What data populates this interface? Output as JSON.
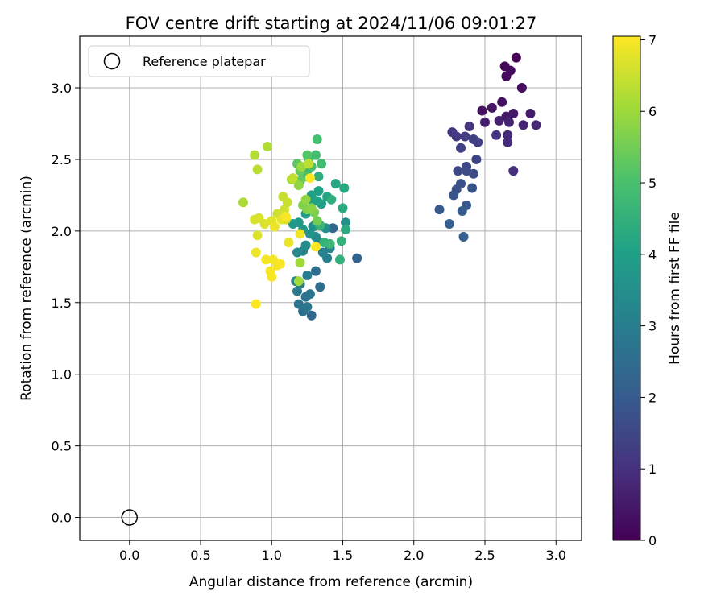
{
  "chart_data": {
    "type": "scatter",
    "title": "FOV centre drift starting at 2024/11/06 09:01:27",
    "xlabel": "Angular distance from reference (arcmin)",
    "ylabel": "Rotation from reference (arcmin)",
    "colorbar_label": "Hours from first FF file",
    "xlim": [
      -0.35,
      3.18
    ],
    "ylim": [
      -0.16,
      3.36
    ],
    "xticks": [
      "0.0",
      "0.5",
      "1.0",
      "1.5",
      "2.0",
      "2.5",
      "3.0"
    ],
    "yticks": [
      "0.0",
      "0.5",
      "1.0",
      "1.5",
      "2.0",
      "2.5",
      "3.0"
    ],
    "colorbar_ticks": [
      "0",
      "1",
      "2",
      "3",
      "4",
      "5",
      "6",
      "7"
    ],
    "colorbar_range": [
      0,
      7.05
    ],
    "colormap": "viridis",
    "grid": true,
    "legend_position": "upper-left",
    "legend_entries": [
      "Reference platepar"
    ],
    "reference_point": {
      "x": 0.0,
      "y": 0.0
    },
    "points": [
      [
        2.72,
        3.21,
        0.05
      ],
      [
        2.64,
        3.15,
        0.1
      ],
      [
        2.68,
        3.12,
        0.15
      ],
      [
        2.65,
        3.08,
        0.2
      ],
      [
        2.76,
        3.0,
        0.25
      ],
      [
        2.62,
        2.9,
        0.3
      ],
      [
        2.48,
        2.84,
        0.35
      ],
      [
        2.55,
        2.86,
        0.4
      ],
      [
        2.65,
        2.8,
        0.45
      ],
      [
        2.7,
        2.82,
        0.5
      ],
      [
        2.82,
        2.82,
        0.55
      ],
      [
        2.5,
        2.76,
        0.6
      ],
      [
        2.6,
        2.77,
        0.65
      ],
      [
        2.67,
        2.76,
        0.7
      ],
      [
        2.77,
        2.74,
        0.75
      ],
      [
        2.86,
        2.74,
        0.8
      ],
      [
        2.66,
        2.67,
        0.85
      ],
      [
        2.66,
        2.62,
        0.9
      ],
      [
        2.7,
        2.42,
        0.95
      ],
      [
        2.58,
        2.67,
        1.05
      ],
      [
        2.39,
        2.73,
        1.1
      ],
      [
        2.27,
        2.69,
        1.15
      ],
      [
        2.3,
        2.66,
        1.2
      ],
      [
        2.36,
        2.66,
        1.25
      ],
      [
        2.45,
        2.62,
        1.3
      ],
      [
        2.42,
        2.64,
        1.35
      ],
      [
        2.33,
        2.58,
        1.4
      ],
      [
        2.44,
        2.5,
        1.45
      ],
      [
        2.37,
        2.45,
        1.5
      ],
      [
        2.31,
        2.42,
        1.55
      ],
      [
        2.37,
        2.42,
        1.6
      ],
      [
        2.42,
        2.4,
        1.65
      ],
      [
        2.33,
        2.33,
        1.7
      ],
      [
        2.3,
        2.29,
        1.75
      ],
      [
        2.41,
        2.3,
        1.8
      ],
      [
        2.28,
        2.25,
        1.85
      ],
      [
        2.37,
        2.18,
        1.9
      ],
      [
        2.18,
        2.15,
        1.95
      ],
      [
        2.34,
        2.14,
        2.0
      ],
      [
        2.25,
        2.05,
        2.05
      ],
      [
        2.35,
        1.96,
        2.1
      ],
      [
        1.6,
        1.81,
        2.2
      ],
      [
        1.43,
        2.02,
        2.3
      ],
      [
        1.28,
        1.41,
        2.4
      ],
      [
        1.34,
        1.61,
        2.5
      ],
      [
        1.31,
        1.72,
        2.55
      ],
      [
        1.22,
        1.44,
        2.6
      ],
      [
        1.24,
        1.54,
        2.65
      ],
      [
        1.19,
        1.49,
        2.7
      ],
      [
        1.27,
        1.56,
        2.75
      ],
      [
        1.25,
        1.47,
        2.8
      ],
      [
        1.18,
        1.58,
        2.85
      ],
      [
        1.2,
        1.63,
        2.9
      ],
      [
        1.25,
        1.69,
        2.95
      ],
      [
        1.17,
        1.65,
        3.0
      ],
      [
        1.39,
        1.81,
        3.05
      ],
      [
        1.36,
        1.85,
        3.1
      ],
      [
        1.41,
        1.88,
        3.15
      ],
      [
        1.33,
        1.92,
        3.2
      ],
      [
        1.22,
        1.86,
        3.25
      ],
      [
        1.18,
        1.85,
        3.3
      ],
      [
        1.31,
        1.96,
        3.35
      ],
      [
        1.24,
        1.9,
        3.4
      ],
      [
        1.29,
        2.03,
        3.45
      ],
      [
        1.38,
        2.02,
        3.5
      ],
      [
        1.52,
        2.06,
        3.55
      ],
      [
        1.31,
        2.05,
        3.6
      ],
      [
        1.27,
        1.98,
        3.65
      ],
      [
        1.22,
        2.01,
        3.7
      ],
      [
        1.15,
        2.05,
        3.75
      ],
      [
        1.19,
        2.06,
        3.8
      ],
      [
        1.24,
        2.12,
        3.85
      ],
      [
        1.35,
        2.19,
        3.9
      ],
      [
        1.27,
        2.22,
        3.95
      ],
      [
        1.28,
        2.25,
        4.0
      ],
      [
        1.33,
        2.28,
        4.05
      ],
      [
        1.32,
        2.21,
        4.1
      ],
      [
        1.39,
        2.24,
        4.15
      ],
      [
        1.45,
        2.33,
        4.2
      ],
      [
        1.51,
        2.3,
        4.25
      ],
      [
        1.5,
        2.16,
        4.3
      ],
      [
        1.52,
        2.01,
        4.35
      ],
      [
        1.42,
        2.22,
        4.4
      ],
      [
        1.33,
        2.38,
        4.45
      ],
      [
        1.48,
        1.8,
        4.5
      ],
      [
        1.49,
        1.93,
        4.55
      ],
      [
        1.37,
        1.92,
        4.6
      ],
      [
        1.34,
        2.04,
        4.65
      ],
      [
        1.41,
        1.91,
        4.7
      ],
      [
        1.25,
        2.42,
        4.75
      ],
      [
        1.26,
        2.5,
        4.8
      ],
      [
        1.35,
        2.47,
        4.85
      ],
      [
        1.31,
        2.53,
        4.9
      ],
      [
        1.32,
        2.64,
        4.95
      ],
      [
        1.28,
        2.45,
        5.0
      ],
      [
        1.24,
        2.38,
        5.05
      ],
      [
        1.25,
        2.53,
        5.15
      ],
      [
        1.18,
        2.47,
        5.25
      ],
      [
        1.2,
        2.35,
        5.35
      ],
      [
        1.2,
        2.42,
        5.4
      ],
      [
        1.32,
        2.07,
        5.5
      ],
      [
        1.3,
        2.13,
        5.6
      ],
      [
        1.22,
        2.18,
        5.65
      ],
      [
        1.25,
        2.15,
        5.7
      ],
      [
        1.28,
        2.16,
        5.8
      ],
      [
        1.19,
        2.32,
        5.85
      ],
      [
        1.24,
        2.22,
        5.9
      ],
      [
        1.21,
        2.45,
        6.0
      ],
      [
        1.2,
        1.78,
        6.05
      ],
      [
        1.19,
        1.65,
        6.05
      ],
      [
        1.14,
        2.36,
        6.1
      ],
      [
        0.8,
        2.2,
        6.15
      ],
      [
        0.97,
        2.59,
        6.2
      ],
      [
        0.88,
        2.53,
        6.25
      ],
      [
        0.9,
        2.43,
        6.3
      ],
      [
        1.26,
        2.47,
        6.35
      ],
      [
        1.15,
        2.37,
        6.4
      ],
      [
        1.08,
        2.24,
        6.45
      ],
      [
        1.11,
        2.2,
        6.5
      ],
      [
        1.04,
        2.12,
        6.55
      ],
      [
        1.09,
        2.15,
        6.55
      ],
      [
        1.1,
        2.08,
        6.6
      ],
      [
        0.88,
        2.08,
        6.65
      ],
      [
        0.91,
        2.09,
        6.65
      ],
      [
        0.95,
        2.05,
        6.7
      ],
      [
        0.9,
        1.97,
        6.7
      ],
      [
        1.0,
        2.07,
        6.75
      ],
      [
        1.07,
        2.08,
        6.8
      ],
      [
        1.02,
        2.03,
        6.85
      ],
      [
        1.12,
        1.92,
        6.85
      ],
      [
        1.2,
        1.98,
        6.9
      ],
      [
        0.89,
        1.85,
        6.9
      ],
      [
        0.96,
        1.8,
        6.95
      ],
      [
        1.01,
        1.8,
        6.95
      ],
      [
        1.04,
        1.76,
        7.0
      ],
      [
        0.99,
        1.72,
        7.0
      ],
      [
        1.0,
        1.68,
        7.0
      ],
      [
        1.06,
        1.77,
        7.0
      ],
      [
        1.1,
        2.1,
        7.0
      ],
      [
        1.27,
        2.37,
        7.05
      ],
      [
        1.31,
        1.89,
        7.05
      ],
      [
        0.89,
        1.49,
        7.05
      ]
    ]
  }
}
